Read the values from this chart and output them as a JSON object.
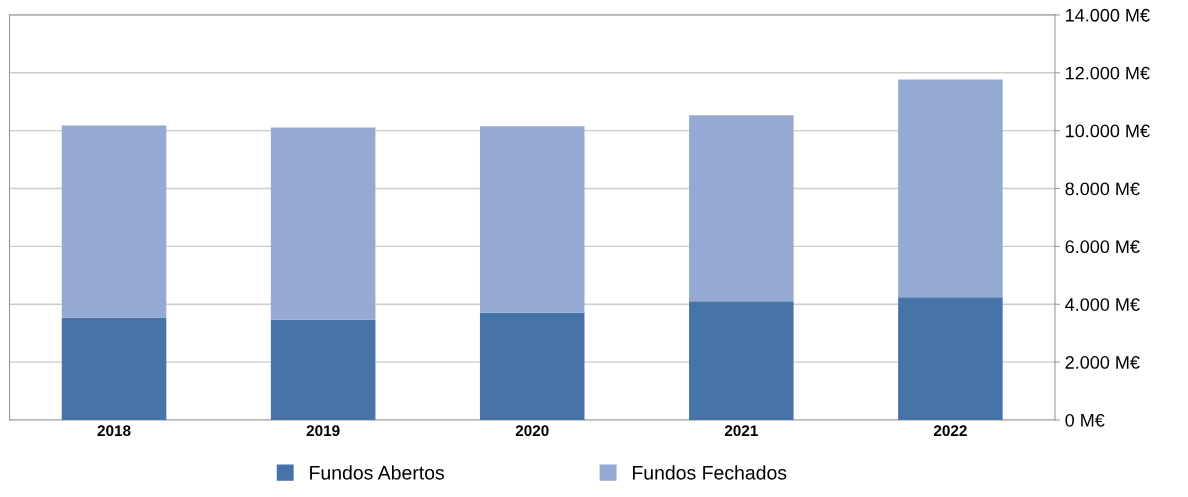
{
  "chart_data": {
    "type": "bar",
    "stacked": true,
    "categories": [
      "2018",
      "2019",
      "2020",
      "2021",
      "2022"
    ],
    "series": [
      {
        "name": "Fundos Abertos",
        "color": "#4674a8",
        "values": [
          3530,
          3460,
          3710,
          4100,
          4240
        ]
      },
      {
        "name": "Fundos Fechados",
        "color": "#95aad2",
        "values": [
          6650,
          6650,
          6440,
          6430,
          7530
        ]
      }
    ],
    "ylim": [
      0,
      14000
    ],
    "yticks": [
      {
        "value": 0,
        "label": "0 M€"
      },
      {
        "value": 2000,
        "label": "2.000 M€"
      },
      {
        "value": 4000,
        "label": "4.000 M€"
      },
      {
        "value": 6000,
        "label": "6.000 M€"
      },
      {
        "value": 8000,
        "label": "8.000 M€"
      },
      {
        "value": 10000,
        "label": "10.000 M€"
      },
      {
        "value": 12000,
        "label": "12.000 M€"
      },
      {
        "value": 14000,
        "label": "14.000 M€"
      }
    ],
    "grid": "y",
    "legend": "bottom"
  }
}
